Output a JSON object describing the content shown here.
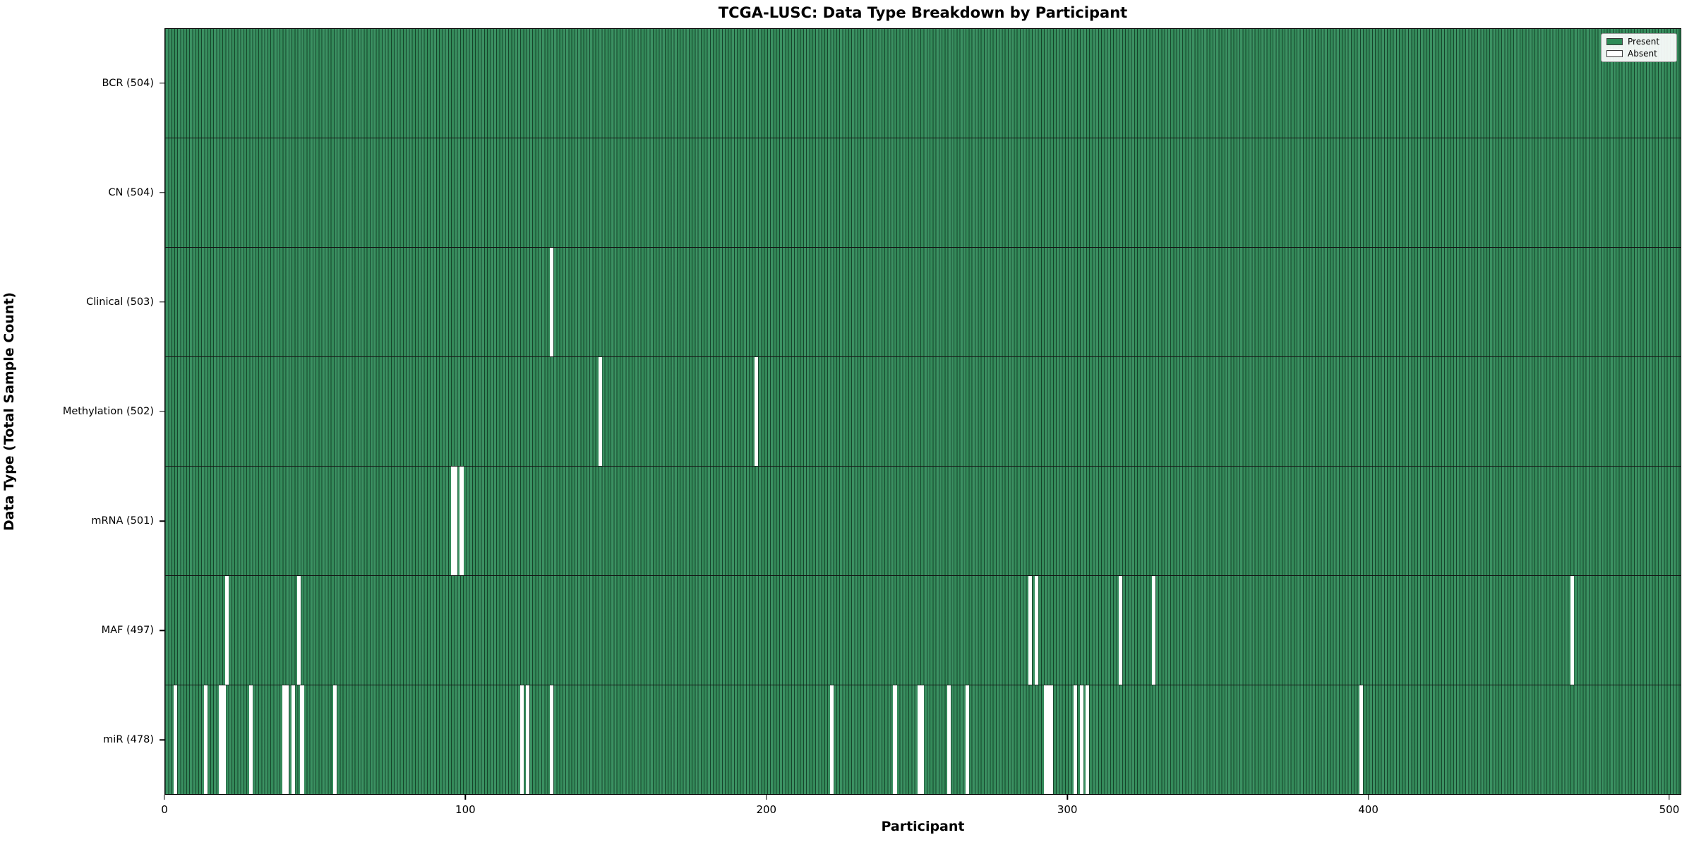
{
  "chart_data": {
    "type": "heatmap",
    "title": "TCGA-LUSC: Data Type Breakdown by Participant",
    "xlabel": "Participant",
    "ylabel": "Data Type (Total Sample Count)",
    "x_ticks": [
      0,
      100,
      200,
      300,
      400,
      500
    ],
    "x_range": [
      0,
      504
    ],
    "n_participants": 504,
    "grid": false,
    "legend_position": "upper right",
    "legend": [
      {
        "label": "Present",
        "color": "#2e8b57"
      },
      {
        "label": "Absent",
        "color": "#ffffff"
      }
    ],
    "present_color": "#358b5c",
    "bar_edge_color": "#123723",
    "rows": [
      {
        "name": "BCR",
        "label": "BCR (504)",
        "total": 504,
        "absent_participants": []
      },
      {
        "name": "CN",
        "label": "CN (504)",
        "total": 504,
        "absent_participants": []
      },
      {
        "name": "Clinical",
        "label": "Clinical (503)",
        "total": 503,
        "absent_participants": [
          128
        ]
      },
      {
        "name": "Methylation",
        "label": "Methylation (502)",
        "total": 502,
        "absent_participants": [
          144,
          196
        ]
      },
      {
        "name": "mRNA",
        "label": "mRNA (501)",
        "total": 501,
        "absent_participants": [
          95,
          96,
          98
        ]
      },
      {
        "name": "MAF",
        "label": "MAF (497)",
        "total": 497,
        "absent_participants": [
          20,
          44,
          287,
          289,
          317,
          328,
          467
        ]
      },
      {
        "name": "miR",
        "label": "miR (478)",
        "total": 478,
        "absent_participants": [
          3,
          13,
          18,
          19,
          28,
          39,
          40,
          42,
          45,
          56,
          118,
          120,
          128,
          221,
          242,
          250,
          251,
          260,
          266,
          292,
          293,
          294,
          302,
          304,
          306,
          397
        ]
      }
    ]
  }
}
